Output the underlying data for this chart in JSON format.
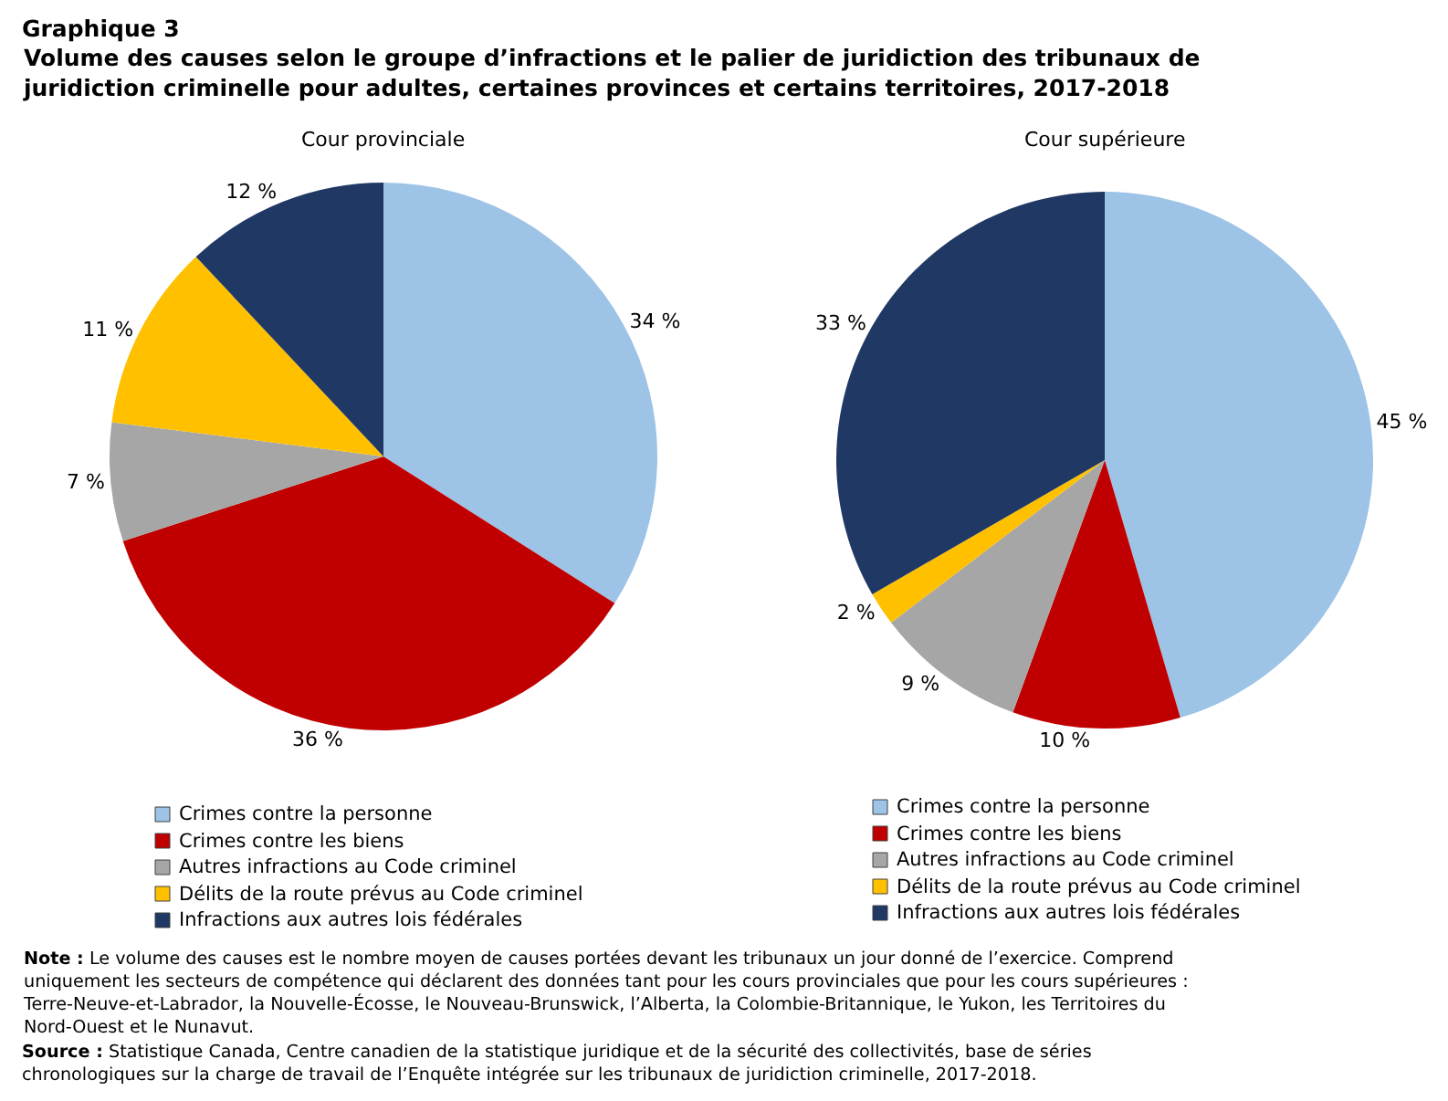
{
  "chart_data": [
    {
      "type": "pie",
      "title": "Cour provinciale",
      "categories": [
        "Crimes contre la personne",
        "Crimes contre les biens",
        "Autres infractions au Code criminel",
        "Délits de la route prévus au Code criminel",
        "Infractions aux autres lois fédérales"
      ],
      "values": [
        34,
        36,
        7,
        11,
        12
      ],
      "value_labels": [
        "34 %",
        "36 %",
        "7 %",
        "11 %",
        "12 %"
      ],
      "colors": [
        "#9dc3e6",
        "#c00000",
        "#a6a6a6",
        "#ffc000",
        "#1f3864"
      ],
      "legend": "bottom",
      "annotations": [
        "Graphique 3",
        "Volume des causes selon le groupe d’infractions et le palier de juridiction des tribunaux de juridiction criminelle pour adultes, certaines provinces et certains territoires, 2017-2018",
        "Note : Le volume des causes est le nombre moyen de causes portées devant les tribunaux un jour donné de l’exercice. Comprend uniquement les secteurs de compétence qui déclarent des données tant pour les cours provinciales que pour les cours supérieures : Terre-Neuve-et-Labrador, la Nouvelle-Écosse, le Nouveau-Brunswick, l’Alberta, la Colombie-Britannique, le Yukon, les Territoires du Nord-Ouest et le Nunavut.",
        "Source : Statistique Canada, Centre canadien de la statistique juridique et de la sécurité des collectivités, base de séries chronologiques sur la charge de travail de l’Enquête intégrée sur les tribunaux de juridiction criminelle, 2017-2018."
      ]
    },
    {
      "type": "pie",
      "title": "Cour supérieure",
      "categories": [
        "Crimes contre la personne",
        "Crimes contre les biens",
        "Autres infractions au Code criminel",
        "Délits de la route prévus au Code criminel",
        "Infractions aux autres lois fédérales"
      ],
      "values": [
        45,
        10,
        9,
        2,
        33
      ],
      "value_labels": [
        "45 %",
        "10 %",
        "9 %",
        "2 %",
        "33 %"
      ],
      "colors": [
        "#9dc3e6",
        "#c00000",
        "#a6a6a6",
        "#ffc000",
        "#1f3864"
      ],
      "legend": "bottom"
    }
  ]
}
